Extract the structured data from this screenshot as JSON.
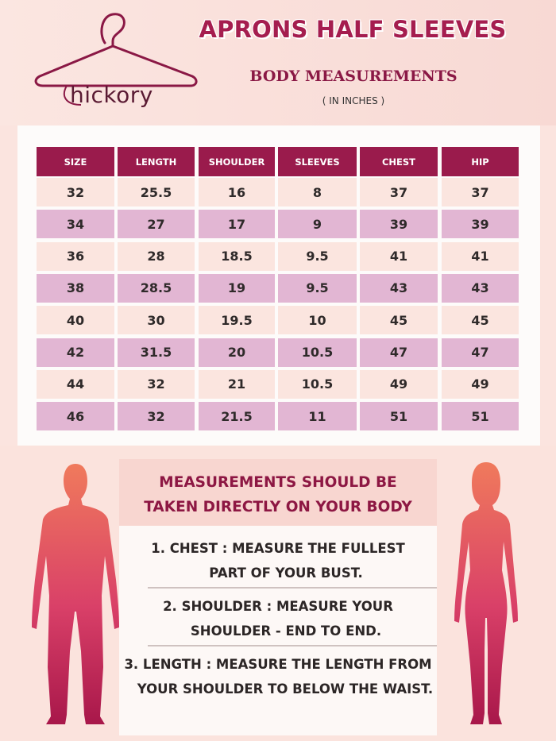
{
  "brand": {
    "logo_text": "hickory"
  },
  "header": {
    "title": "APRONS HALF SLEEVES",
    "subtitle": "BODY MEASUREMENTS",
    "units": "( IN INCHES )"
  },
  "colors": {
    "header_cell": "#9a1b4c",
    "row_light": "#fbe5df",
    "row_dark": "#e2b6d3",
    "title": "#a51d4f"
  },
  "table": {
    "columns": [
      "SIZE",
      "LENGTH",
      "SHOULDER",
      "SLEEVES",
      "CHEST",
      "HIP"
    ],
    "rows": [
      [
        "32",
        "25.5",
        "16",
        "8",
        "37",
        "37"
      ],
      [
        "34",
        "27",
        "17",
        "9",
        "39",
        "39"
      ],
      [
        "36",
        "28",
        "18.5",
        "9.5",
        "41",
        "41"
      ],
      [
        "38",
        "28.5",
        "19",
        "9.5",
        "43",
        "43"
      ],
      [
        "40",
        "30",
        "19.5",
        "10",
        "45",
        "45"
      ],
      [
        "42",
        "31.5",
        "20",
        "10.5",
        "47",
        "47"
      ],
      [
        "44",
        "32",
        "21",
        "10.5",
        "49",
        "49"
      ],
      [
        "46",
        "32",
        "21.5",
        "11",
        "51",
        "51"
      ]
    ]
  },
  "instructions": {
    "title_line1": "MEASUREMENTS SHOULD BE",
    "title_line2": "TAKEN DIRECTLY ON YOUR BODY",
    "items": [
      {
        "line1": "1.  CHEST : MEASURE THE FULLEST",
        "line2": "PART OF YOUR BUST."
      },
      {
        "line1": "2.  SHOULDER : MEASURE YOUR",
        "line2": "SHOULDER - END TO END."
      },
      {
        "line1": "3.  LENGTH : MEASURE THE LENGTH FROM",
        "line2": "YOUR SHOULDER TO BELOW THE WAIST."
      }
    ]
  },
  "icons": {
    "logo": "hanger-icon",
    "male": "male-silhouette-icon",
    "female": "female-silhouette-icon"
  }
}
